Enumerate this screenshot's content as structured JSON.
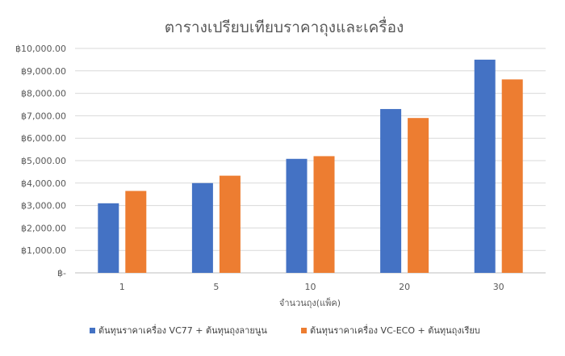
{
  "chart_data": {
    "type": "bar",
    "title": "ตารางเปรียบเทียบราคาถุงและเครื่อง",
    "xlabel": "จำนวนถุง(แพ็ค)",
    "ylabel": "",
    "categories": [
      "1",
      "5",
      "10",
      "20",
      "30"
    ],
    "ylim": [
      0,
      10000
    ],
    "y_ticks": [
      {
        "value": 0,
        "label": "฿-"
      },
      {
        "value": 1000,
        "label": "฿1,000.00"
      },
      {
        "value": 2000,
        "label": "฿2,000.00"
      },
      {
        "value": 3000,
        "label": "฿3,000.00"
      },
      {
        "value": 4000,
        "label": "฿4,000.00"
      },
      {
        "value": 5000,
        "label": "฿5,000.00"
      },
      {
        "value": 6000,
        "label": "฿6,000.00"
      },
      {
        "value": 7000,
        "label": "฿7,000.00"
      },
      {
        "value": 8000,
        "label": "฿8,000.00"
      },
      {
        "value": 9000,
        "label": "฿9,000.00"
      },
      {
        "value": 10000,
        "label": "฿10,000.00"
      }
    ],
    "grid": true,
    "legend_position": "bottom",
    "series": [
      {
        "name": "ต้นทุนราคาเครื่อง VC77 + ต้นทุนถุงลายนูน",
        "color": "#4472C4",
        "values": [
          3100,
          4000,
          5080,
          7300,
          9500
        ]
      },
      {
        "name": "ต้นทุนราคาเครื่อง VC-ECO + ต้นทุนถุงเรียบ",
        "color": "#ED7D31",
        "values": [
          3650,
          4330,
          5200,
          6900,
          8620
        ]
      }
    ]
  }
}
